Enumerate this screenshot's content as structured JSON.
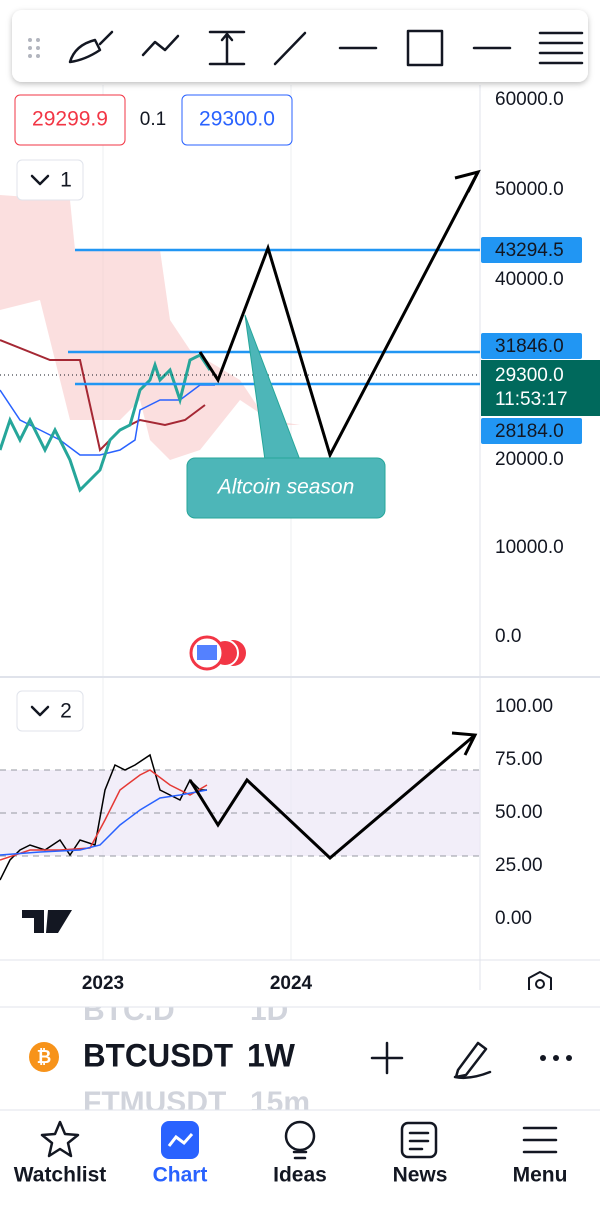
{
  "price_inputs": {
    "sell": "29299.9",
    "spread": "0.1",
    "buy": "29300.0"
  },
  "pane1": {
    "toggle": "1",
    "axis_labels": [
      "60000.0",
      "50000.0",
      "40000.0",
      "20000.0",
      "10000.0",
      "0.0"
    ],
    "price_tags": [
      "43294.5",
      "31846.0",
      "28184.0"
    ],
    "last_price": "29300.0",
    "countdown": "11:53:17",
    "annotation": "Altcoin season"
  },
  "pane2": {
    "toggle": "2",
    "axis_labels": [
      "100.00",
      "75.00",
      "50.00",
      "25.00",
      "0.00"
    ]
  },
  "time_axis": [
    "2023",
    "2024"
  ],
  "symbol_bar": {
    "previous": "BTC.D",
    "previous_interval": "1D",
    "symbol": "BTCUSDT",
    "interval": "1W",
    "next": "FTMUSDT",
    "next_interval": "15m"
  },
  "nav": [
    "Watchlist",
    "Chart",
    "Ideas",
    "News",
    "Menu"
  ]
}
